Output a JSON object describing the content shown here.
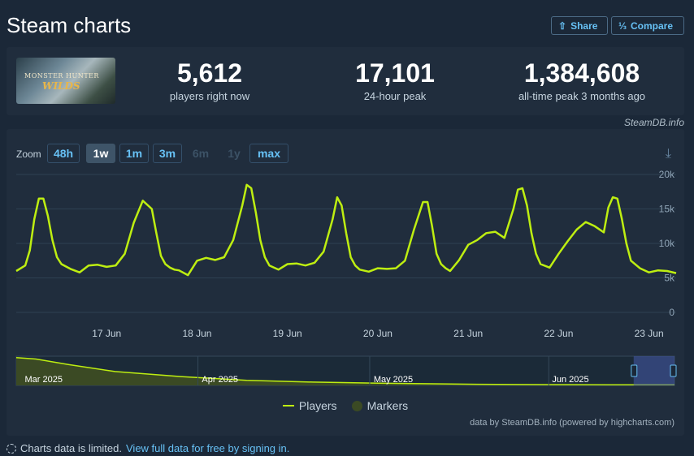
{
  "header": {
    "title": "Steam charts",
    "share_label": "Share",
    "compare_label": "Compare"
  },
  "game": {
    "logo_text": "MONSTER HUNTER",
    "logo_sub": "WILDS"
  },
  "stats": [
    {
      "value": "5,612",
      "label": "players right now"
    },
    {
      "value": "17,101",
      "label": "24-hour peak"
    },
    {
      "value": "1,384,608",
      "label": "all-time peak 3 months ago"
    }
  ],
  "credit_top": "SteamDB.info",
  "zoom": {
    "label": "Zoom",
    "buttons": [
      "48h",
      "1w",
      "1m",
      "3m",
      "6m",
      "1y",
      "max"
    ],
    "active": "1w",
    "disabled": [
      "6m",
      "1y"
    ]
  },
  "legend": {
    "players": "Players",
    "markers": "Markers"
  },
  "credit_bottom": "data by SteamDB.info (powered by highcharts.com)",
  "footer": {
    "text": "Charts data is limited.",
    "link": "View full data for free by signing in."
  },
  "colors": {
    "series": "#beee11",
    "background": "#1b2838",
    "panel": "#202d3d",
    "accent": "#67c1f5"
  },
  "chart_data": {
    "type": "line",
    "series": [
      {
        "name": "Players",
        "x": [
          16.0,
          16.1,
          16.15,
          16.2,
          16.25,
          16.3,
          16.35,
          16.4,
          16.45,
          16.5,
          16.6,
          16.7,
          16.8,
          16.9,
          17.0,
          17.1,
          17.2,
          17.3,
          17.4,
          17.5,
          17.55,
          17.6,
          17.65,
          17.7,
          17.75,
          17.8,
          17.9,
          18.0,
          18.1,
          18.2,
          18.3,
          18.4,
          18.5,
          18.55,
          18.6,
          18.65,
          18.7,
          18.75,
          18.8,
          18.9,
          19.0,
          19.1,
          19.2,
          19.3,
          19.4,
          19.5,
          19.55,
          19.6,
          19.65,
          19.7,
          19.75,
          19.8,
          19.9,
          20.0,
          20.1,
          20.2,
          20.3,
          20.4,
          20.5,
          20.55,
          20.6,
          20.65,
          20.7,
          20.75,
          20.8,
          20.9,
          21.0,
          21.1,
          21.2,
          21.3,
          21.4,
          21.5,
          21.55,
          21.6,
          21.65,
          21.7,
          21.75,
          21.8,
          21.9,
          22.0,
          22.1,
          22.2,
          22.3,
          22.4,
          22.5,
          22.55,
          22.6,
          22.65,
          22.7,
          22.75,
          22.8,
          22.9,
          23.0,
          23.1,
          23.2,
          23.3
        ],
        "y": [
          6000,
          6800,
          9000,
          13500,
          16500,
          16500,
          14000,
          10500,
          8000,
          7000,
          6300,
          5800,
          6800,
          6900,
          6600,
          6800,
          8500,
          13000,
          16200,
          15000,
          11500,
          8200,
          7000,
          6500,
          6200,
          6100,
          5400,
          7500,
          7900,
          7600,
          8000,
          10500,
          15500,
          18500,
          18000,
          14500,
          10500,
          8000,
          6800,
          6200,
          7000,
          7100,
          6800,
          7200,
          8800,
          13500,
          16700,
          15500,
          11500,
          8000,
          6800,
          6200,
          5900,
          6400,
          6300,
          6400,
          7500,
          12000,
          16000,
          16000,
          12500,
          8500,
          7000,
          6400,
          6000,
          7600,
          9800,
          10500,
          11500,
          11700,
          10800,
          15000,
          17800,
          18000,
          15500,
          11500,
          8500,
          7000,
          6500,
          8500,
          10300,
          12000,
          13100,
          12500,
          11600,
          15200,
          16700,
          16500,
          13500,
          10000,
          7500,
          6400,
          5800,
          6100,
          6000,
          5700
        ]
      }
    ],
    "x_ticks": [
      {
        "value": 17,
        "label": "17 Jun"
      },
      {
        "value": 18,
        "label": "18 Jun"
      },
      {
        "value": 19,
        "label": "19 Jun"
      },
      {
        "value": 20,
        "label": "20 Jun"
      },
      {
        "value": 21,
        "label": "21 Jun"
      },
      {
        "value": 22,
        "label": "22 Jun"
      },
      {
        "value": 23,
        "label": "23 Jun"
      }
    ],
    "y_ticks": [
      {
        "value": 0,
        "label": "0"
      },
      {
        "value": 5000,
        "label": "5k"
      },
      {
        "value": 10000,
        "label": "10k"
      },
      {
        "value": 15000,
        "label": "15k"
      },
      {
        "value": 20000,
        "label": "20k"
      }
    ],
    "xlim": [
      16.0,
      23.3
    ],
    "ylim": [
      0,
      20000
    ],
    "grid": true,
    "navigator": {
      "labels": [
        "Mar 2025",
        "Apr 2025",
        "May 2025",
        "Jun 2025"
      ],
      "x": [
        0,
        0.03,
        0.08,
        0.15,
        0.25,
        0.3,
        0.35,
        0.45,
        0.55,
        0.62,
        0.7,
        0.8,
        0.9,
        1.0
      ],
      "y": [
        1.0,
        0.95,
        0.75,
        0.5,
        0.32,
        0.25,
        0.18,
        0.12,
        0.08,
        0.06,
        0.04,
        0.03,
        0.02,
        0.02
      ]
    }
  }
}
